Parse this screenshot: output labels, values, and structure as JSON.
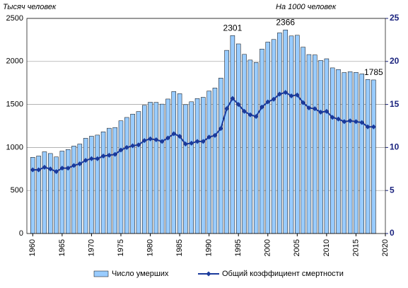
{
  "chart_data": {
    "type": "bar-line",
    "left_axis_label": "Тысяч человек",
    "right_axis_label": "На 1000 человек",
    "x": [
      1960,
      1961,
      1962,
      1963,
      1964,
      1965,
      1966,
      1967,
      1968,
      1969,
      1970,
      1971,
      1972,
      1973,
      1974,
      1975,
      1976,
      1977,
      1978,
      1979,
      1980,
      1981,
      1982,
      1983,
      1984,
      1985,
      1986,
      1987,
      1988,
      1989,
      1990,
      1991,
      1992,
      1993,
      1994,
      1995,
      1996,
      1997,
      1998,
      1999,
      2000,
      2001,
      2002,
      2003,
      2004,
      2005,
      2006,
      2007,
      2008,
      2009,
      2010,
      2011,
      2012,
      2013,
      2014,
      2015,
      2016,
      2017,
      2018
    ],
    "xlim": [
      1959,
      2020
    ],
    "xticks": [
      1960,
      1965,
      1970,
      1975,
      1980,
      1985,
      1990,
      1995,
      2000,
      2005,
      2010,
      2015,
      2020
    ],
    "ylim": [
      0,
      2500
    ],
    "yticks": [
      0,
      500,
      1000,
      1500,
      2000,
      2500
    ],
    "y2lim": [
      0,
      25
    ],
    "y2ticks": [
      0,
      5,
      10,
      15,
      20,
      25
    ],
    "grid": true,
    "legend": "bottom",
    "series": [
      {
        "name": "Число умерших",
        "color": "#99ccff",
        "values": [
          886,
          901,
          950,
          930,
          890,
          958,
          976,
          1017,
          1040,
          1107,
          1131,
          1144,
          1182,
          1224,
          1232,
          1310,
          1349,
          1388,
          1418,
          1490,
          1526,
          1524,
          1504,
          1563,
          1650,
          1625,
          1498,
          1531,
          1569,
          1583,
          1656,
          1691,
          1807,
          2129,
          2301,
          2204,
          2082,
          2016,
          1988,
          2144,
          2225,
          2255,
          2332,
          2366,
          2296,
          2304,
          2166,
          2080,
          2076,
          2011,
          2031,
          1925,
          1906,
          1871,
          1880,
          1873,
          1855,
          1790,
          1785
        ],
        "value_labels": [
          null,
          null,
          null,
          null,
          null,
          null,
          null,
          null,
          null,
          null,
          null,
          null,
          null,
          null,
          null,
          null,
          null,
          null,
          null,
          null,
          null,
          null,
          null,
          null,
          null,
          null,
          null,
          null,
          null,
          null,
          null,
          null,
          null,
          null,
          "2301",
          null,
          null,
          null,
          null,
          null,
          null,
          null,
          null,
          "2366",
          null,
          null,
          null,
          null,
          null,
          null,
          null,
          null,
          null,
          null,
          null,
          null,
          null,
          null,
          "1785"
        ]
      },
      {
        "name": "Общий коэффициент смертности",
        "color": "#1a3a9c",
        "axis": "y2",
        "values": [
          7.4,
          7.4,
          7.7,
          7.5,
          7.2,
          7.6,
          7.6,
          7.9,
          8.1,
          8.5,
          8.7,
          8.7,
          9.0,
          9.1,
          9.2,
          9.7,
          10.0,
          10.2,
          10.3,
          10.8,
          11.0,
          10.9,
          10.7,
          11.1,
          11.6,
          11.3,
          10.4,
          10.5,
          10.7,
          10.7,
          11.2,
          11.4,
          12.2,
          14.5,
          15.7,
          15.0,
          14.2,
          13.8,
          13.6,
          14.7,
          15.3,
          15.6,
          16.2,
          16.4,
          16.0,
          16.1,
          15.2,
          14.6,
          14.5,
          14.1,
          14.2,
          13.5,
          13.3,
          13.0,
          13.1,
          13.0,
          12.9,
          12.4,
          12.4
        ]
      }
    ]
  }
}
